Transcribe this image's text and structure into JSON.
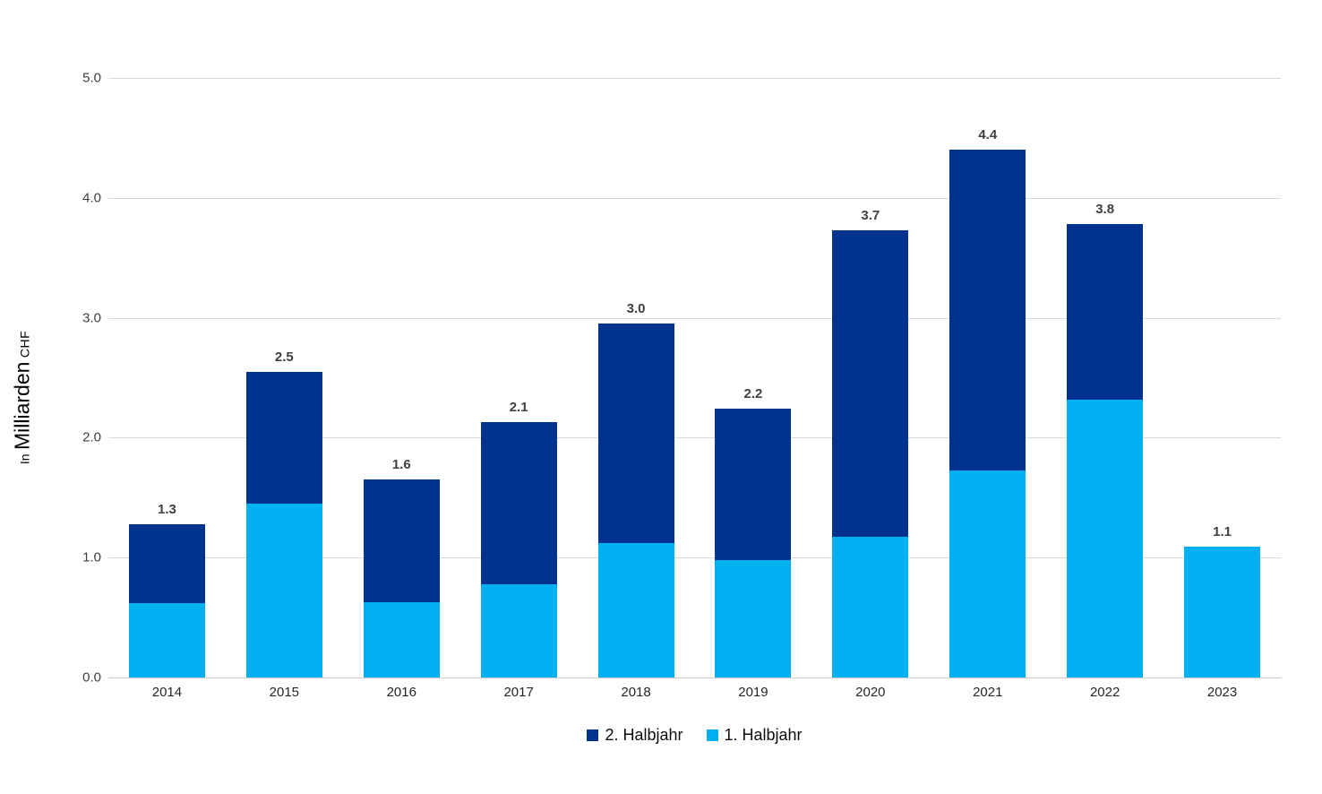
{
  "chart_data": {
    "type": "bar",
    "stacked": true,
    "title": "",
    "ylabel_prefix": "In",
    "ylabel_main": "Milliarden",
    "ylabel_suffix": "CHF",
    "categories": [
      "2014",
      "2015",
      "2016",
      "2017",
      "2018",
      "2019",
      "2020",
      "2021",
      "2022",
      "2023"
    ],
    "series": [
      {
        "name": "1. Halbjahr",
        "color": "#00b0f0",
        "values": [
          0.62,
          1.45,
          0.63,
          0.78,
          1.12,
          0.98,
          1.17,
          1.73,
          2.32,
          1.09
        ]
      },
      {
        "name": "2. Halbjahr",
        "color": "#00338f",
        "values": [
          0.66,
          1.1,
          1.02,
          1.35,
          1.83,
          1.26,
          2.56,
          2.67,
          1.46,
          0.0
        ]
      }
    ],
    "total_labels": [
      "1.3",
      "2.5",
      "1.6",
      "2.1",
      "3.0",
      "2.2",
      "3.7",
      "4.4",
      "3.8",
      "1.1"
    ],
    "ylim": [
      0,
      5
    ],
    "yticks": [
      5.0,
      4.0,
      3.0,
      2.0,
      1.0,
      0.0
    ],
    "ytick_labels": [
      "5.0",
      "4.0",
      "3.0",
      "2.0",
      "1.0",
      "0.0"
    ],
    "grid": true,
    "legend_position": "bottom",
    "legend_order": [
      "2. Halbjahr",
      "1. Halbjahr"
    ],
    "colors": {
      "grid": "#d9d9d9",
      "tick_text": "#404040",
      "total_label_text": "#404040",
      "xtick_text": "#262626",
      "legend_text": "#0d0d0d"
    }
  }
}
